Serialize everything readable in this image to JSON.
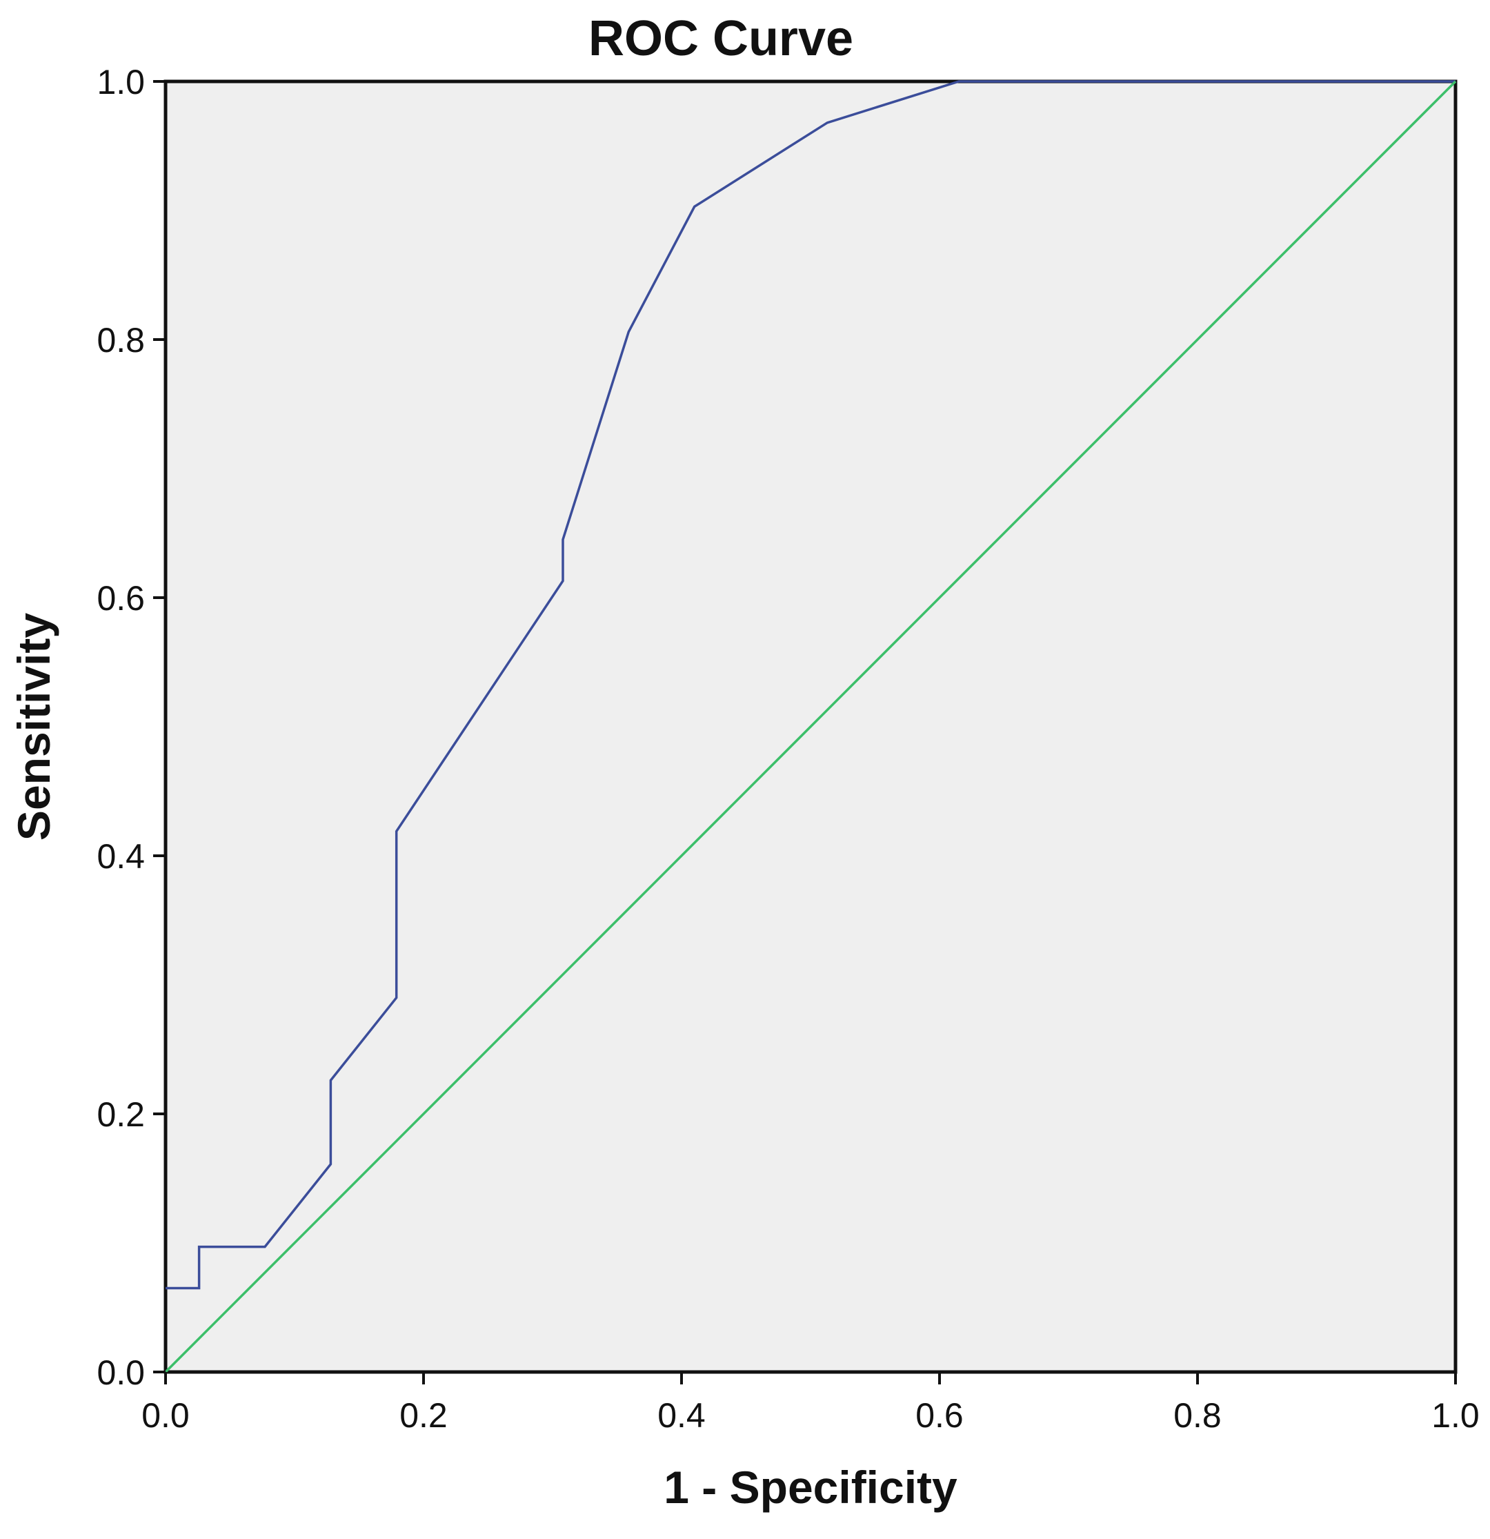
{
  "chart_data": {
    "type": "line",
    "title": "ROC Curve",
    "xlabel": "1 - Specificity",
    "ylabel": "Sensitivity",
    "xlim": [
      0,
      1
    ],
    "ylim": [
      0,
      1
    ],
    "x_ticks": [
      "0.0",
      "0.2",
      "0.4",
      "0.6",
      "0.8",
      "1.0"
    ],
    "y_ticks": [
      "0.0",
      "0.2",
      "0.4",
      "0.6",
      "0.8",
      "1.0"
    ],
    "grid": false,
    "background": "#efefef",
    "series": [
      {
        "color": "#3b4d9a",
        "x": [
          0.0,
          0.026,
          0.026,
          0.077,
          0.128,
          0.128,
          0.179,
          0.179,
          0.308,
          0.308,
          0.359,
          0.41,
          0.513,
          0.615,
          1.0
        ],
        "y": [
          0.065,
          0.065,
          0.097,
          0.097,
          0.161,
          0.226,
          0.29,
          0.419,
          0.613,
          0.645,
          0.806,
          0.903,
          0.968,
          1.0,
          1.0
        ]
      },
      {
        "color": "#3cbf6a",
        "x": [
          0.0,
          1.0
        ],
        "y": [
          0.0,
          1.0
        ]
      }
    ]
  }
}
